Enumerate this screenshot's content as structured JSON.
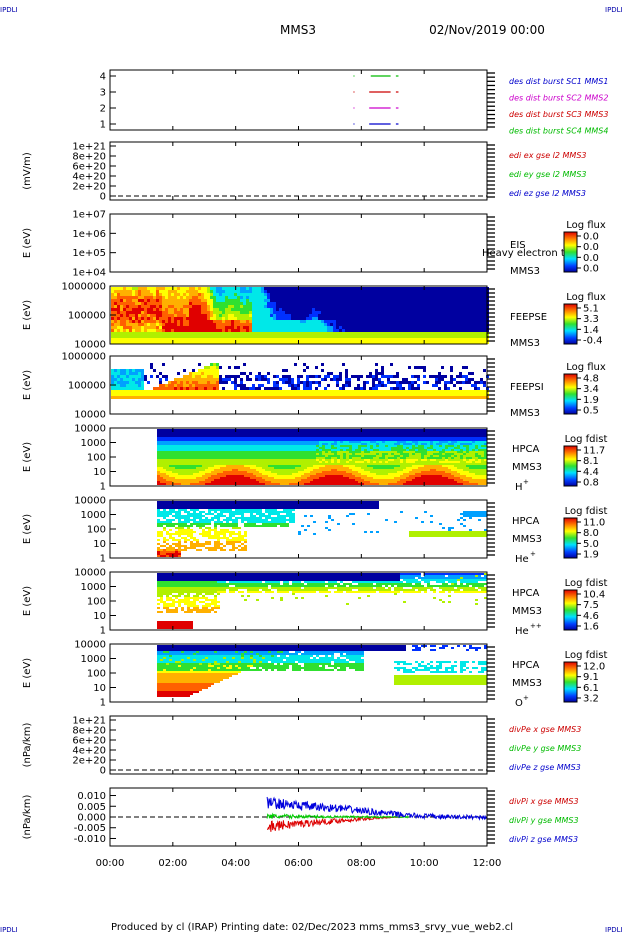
{
  "corner_label": "IPDLI",
  "header": {
    "spacecraft": "MMS3",
    "date": "02/Nov/2019 00:00"
  },
  "footer": {
    "text": "Produced by cl (IRAP)   Printing date: 02/Dec/2023   mms_mms3_srvy_vue_web2.cl"
  },
  "chart_data": {
    "type": "multi-panel time series",
    "x_axis": {
      "start_hour": 0,
      "end_hour": 12,
      "tick_labels": [
        "00:00",
        "02:00",
        "04:00",
        "06:00",
        "08:00",
        "10:00",
        "12:00"
      ]
    },
    "panels": [
      {
        "id": "des",
        "ylabel": "",
        "yticks": [
          "4",
          "3",
          "2",
          "1"
        ],
        "legend": [
          {
            "text": "des dist burst SC1 MMS1",
            "color": "#0000cc"
          },
          {
            "text": "des dist burst SC2 MMS2",
            "color": "#cc00cc"
          },
          {
            "text": "des dist burst SC3 MMS3",
            "color": "#cc0000"
          },
          {
            "text": "des dist burst SC4 MMS4",
            "color": "#00bb00"
          }
        ],
        "intervals": [
          {
            "level": 4,
            "color": "#00bb00",
            "segments": [
              [
                7.75,
                7.75
              ],
              [
                8.3,
                8.9
              ],
              [
                9.1,
                9.15
              ]
            ]
          },
          {
            "level": 3,
            "color": "#cc0000",
            "segments": [
              [
                7.75,
                7.75
              ],
              [
                8.25,
                8.9
              ],
              [
                9.1,
                9.15
              ]
            ]
          },
          {
            "level": 2,
            "color": "#cc00cc",
            "segments": [
              [
                7.75,
                7.75
              ],
              [
                8.25,
                8.9
              ],
              [
                9.1,
                9.15
              ]
            ]
          },
          {
            "level": 1,
            "color": "#0000cc",
            "segments": [
              [
                7.75,
                7.75
              ],
              [
                8.25,
                8.9
              ],
              [
                9.1,
                9.15
              ]
            ]
          }
        ]
      },
      {
        "id": "edi",
        "ylabel": "(mV/m)",
        "yticks": [
          "1e+21",
          "8e+20",
          "6e+20",
          "4e+20",
          "2e+20",
          "0"
        ],
        "legend": [
          {
            "text": "edi ex gse l2 MMS3",
            "color": "#cc0000"
          },
          {
            "text": "edi ey gse l2 MMS3",
            "color": "#00bb00"
          },
          {
            "text": "edi ez gse l2 MMS3",
            "color": "#0000cc"
          }
        ]
      },
      {
        "id": "eis",
        "ylabel": "E (eV)",
        "yticks": [
          "1e+07",
          "1e+06",
          "1e+05",
          "1e+04"
        ],
        "labels": [
          "EIS",
          "MMS3"
        ],
        "overlay": "Heavy electron to",
        "colorbar": {
          "title": "Log flux",
          "values": [
            "0.0",
            "0.0",
            "0.0",
            "0.0"
          ]
        }
      },
      {
        "id": "feepse",
        "ylabel": "E (eV)",
        "yticks": [
          "1000000",
          "100000",
          "10000"
        ],
        "labels": [
          "FEEPSE",
          "MMS3"
        ],
        "colorbar": {
          "title": "Log flux",
          "values": [
            "5.1",
            "3.3",
            "1.4",
            "-0.4"
          ]
        }
      },
      {
        "id": "feepsi",
        "ylabel": "E (eV)",
        "yticks": [
          "1000000",
          "100000",
          "10000"
        ],
        "labels": [
          "FEEPSI",
          "MMS3"
        ],
        "colorbar": {
          "title": "Log flux",
          "values": [
            "4.8",
            "3.4",
            "1.9",
            "0.5"
          ]
        }
      },
      {
        "id": "hpca_h",
        "ylabel": "E (eV)",
        "yticks": [
          "10000",
          "1000",
          "100",
          "10",
          "1"
        ],
        "labels": [
          "HPCA",
          "MMS3"
        ],
        "species": "H",
        "charge": "+",
        "colorbar": {
          "title": "Log fdist",
          "values": [
            "11.7",
            "8.1",
            "4.4",
            "0.8"
          ]
        }
      },
      {
        "id": "hpca_he",
        "ylabel": "E (eV)",
        "yticks": [
          "10000",
          "1000",
          "100",
          "10",
          "1"
        ],
        "labels": [
          "HPCA",
          "MMS3"
        ],
        "species": "He",
        "charge": "+",
        "colorbar": {
          "title": "Log fdist",
          "values": [
            "11.0",
            "8.0",
            "5.0",
            "1.9"
          ]
        }
      },
      {
        "id": "hpca_he2",
        "ylabel": "E (eV)",
        "yticks": [
          "10000",
          "1000",
          "100",
          "10",
          "1"
        ],
        "labels": [
          "HPCA",
          "MMS3"
        ],
        "species": "He",
        "charge": "++",
        "colorbar": {
          "title": "Log fdist",
          "values": [
            "10.4",
            "7.5",
            "4.6",
            "1.6"
          ]
        }
      },
      {
        "id": "hpca_o",
        "ylabel": "E (eV)",
        "yticks": [
          "10000",
          "1000",
          "100",
          "10",
          "1"
        ],
        "labels": [
          "HPCA",
          "MMS3"
        ],
        "species": "O",
        "charge": "+",
        "colorbar": {
          "title": "Log fdist",
          "values": [
            "12.0",
            "9.1",
            "6.1",
            "3.2"
          ]
        }
      },
      {
        "id": "divpe",
        "ylabel": "(nPa/km)",
        "yticks": [
          "1e+21",
          "8e+20",
          "6e+20",
          "4e+20",
          "2e+20",
          "0"
        ],
        "legend": [
          {
            "text": "divPe x gse MMS3",
            "color": "#cc0000"
          },
          {
            "text": "divPe y gse MMS3",
            "color": "#00bb00"
          },
          {
            "text": "divPe z gse MMS3",
            "color": "#0000cc"
          }
        ]
      },
      {
        "id": "divpi",
        "ylabel": "(nPa/km)",
        "yticks": [
          "0.010",
          "0.005",
          "0.000",
          "-0.005",
          "-0.010"
        ],
        "ylim": [
          -0.0135,
          0.0135
        ],
        "legend": [
          {
            "text": "divPi x gse MMS3",
            "color": "#cc0000"
          },
          {
            "text": "divPi y gse MMS3",
            "color": "#00bb00"
          },
          {
            "text": "divPi z gse MMS3",
            "color": "#0000cc"
          }
        ],
        "series": [
          {
            "name": "divPi x gse MMS3",
            "color": "#dd0000",
            "start_hour": 5.0,
            "end_hour": 9.3,
            "envelope": [
              [
                5.0,
                -0.002,
                -0.0075
              ],
              [
                5.5,
                -0.0015,
                -0.006
              ],
              [
                6.5,
                -0.001,
                -0.004
              ],
              [
                7.5,
                -0.0005,
                -0.0025
              ],
              [
                8.5,
                0.0,
                -0.001
              ],
              [
                9.3,
                0.0,
                0.0
              ]
            ]
          },
          {
            "name": "divPi y gse MMS3",
            "color": "#00cc00",
            "start_hour": 5.0,
            "end_hour": 9.5,
            "envelope": [
              [
                5.0,
                0.0015,
                -0.001
              ],
              [
                6.0,
                0.001,
                -0.0005
              ],
              [
                7.5,
                0.0005,
                -0.0005
              ],
              [
                9.5,
                0.0003,
                -0.0003
              ]
            ]
          },
          {
            "name": "divPi z gse MMS3",
            "color": "#0000dd",
            "start_hour": 5.0,
            "end_hour": 12.0,
            "envelope": [
              [
                5.0,
                0.0095,
                0.004
              ],
              [
                6.0,
                0.0075,
                0.003
              ],
              [
                7.5,
                0.0055,
                0.002
              ],
              [
                8.5,
                0.0035,
                0.0008
              ],
              [
                9.5,
                0.002,
                -0.0005
              ],
              [
                10.5,
                0.0012,
                -0.001
              ],
              [
                12.0,
                0.0008,
                -0.001
              ]
            ]
          }
        ]
      }
    ]
  }
}
